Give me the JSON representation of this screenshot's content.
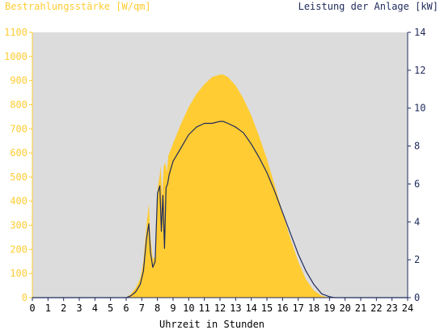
{
  "chart_data": {
    "type": "area",
    "title_left": "Bestrahlungsstärke [W/qm]",
    "title_right": "Leistung der Anlage [kW]",
    "xlabel": "Uhrzeit in Stunden",
    "x_ticks": [
      "0",
      "1",
      "2",
      "3",
      "4",
      "5",
      "6",
      "7",
      "8",
      "9",
      "10",
      "11",
      "12",
      "13",
      "14",
      "15",
      "16",
      "17",
      "18",
      "19",
      "20",
      "21",
      "22",
      "23",
      "24"
    ],
    "y_left_ticks": [
      "0",
      "100",
      "200",
      "300",
      "400",
      "500",
      "600",
      "700",
      "800",
      "900",
      "1000",
      "1100"
    ],
    "y_right_ticks": [
      "0",
      "2",
      "4",
      "6",
      "8",
      "10",
      "12",
      "14"
    ],
    "xlim": [
      0,
      24
    ],
    "ylim_left": [
      0,
      1100
    ],
    "ylim_right": [
      0,
      14
    ],
    "grid": false,
    "colors": {
      "plot_background": "#dcdcdc",
      "irradiance_fill": "#ffcc33",
      "power_line": "#1f2a5c",
      "left_axis": "#ffcc33",
      "right_axis": "#1f2a5c"
    },
    "series": [
      {
        "axis": "left",
        "style": "area",
        "x": [
          0,
          6.0,
          6.3,
          6.6,
          6.9,
          7.1,
          7.3,
          7.45,
          7.55,
          7.7,
          7.85,
          8.0,
          8.15,
          8.2,
          8.3,
          8.4,
          8.5,
          8.6,
          8.7,
          9.0,
          9.5,
          10.0,
          10.5,
          11.0,
          11.5,
          12.0,
          12.2,
          12.5,
          13.0,
          13.5,
          14.0,
          14.5,
          15.0,
          15.5,
          16.0,
          16.5,
          17.0,
          17.5,
          18.0,
          18.5,
          19.0,
          19.3,
          19.5,
          24
        ],
        "y": [
          0,
          0,
          15,
          40,
          80,
          150,
          300,
          390,
          250,
          160,
          170,
          450,
          510,
          550,
          420,
          545,
          560,
          520,
          590,
          640,
          720,
          790,
          845,
          885,
          915,
          925,
          925,
          915,
          880,
          825,
          755,
          670,
          575,
          465,
          355,
          245,
          150,
          75,
          30,
          8,
          0,
          0,
          0,
          0
        ]
      },
      {
        "axis": "right",
        "style": "line",
        "x": [
          0,
          6.0,
          6.3,
          6.6,
          6.9,
          7.1,
          7.3,
          7.45,
          7.55,
          7.7,
          7.85,
          8.0,
          8.15,
          8.25,
          8.35,
          8.45,
          8.55,
          8.65,
          8.75,
          9.0,
          9.5,
          10.0,
          10.5,
          11.0,
          11.5,
          12.0,
          12.2,
          12.5,
          13.0,
          13.5,
          14.0,
          14.5,
          15.0,
          15.5,
          16.0,
          16.5,
          17.0,
          17.5,
          18.0,
          18.5,
          19.0,
          19.3,
          19.5,
          24
        ],
        "y": [
          0,
          0,
          0.1,
          0.3,
          0.7,
          1.4,
          3.1,
          3.9,
          2.4,
          1.6,
          1.9,
          5.5,
          5.9,
          3.5,
          5.4,
          2.6,
          5.8,
          6.0,
          6.5,
          7.2,
          7.9,
          8.6,
          9.0,
          9.2,
          9.2,
          9.3,
          9.3,
          9.2,
          9.0,
          8.7,
          8.1,
          7.4,
          6.6,
          5.6,
          4.5,
          3.4,
          2.3,
          1.4,
          0.7,
          0.2,
          0.05,
          0,
          0,
          0
        ]
      }
    ]
  }
}
